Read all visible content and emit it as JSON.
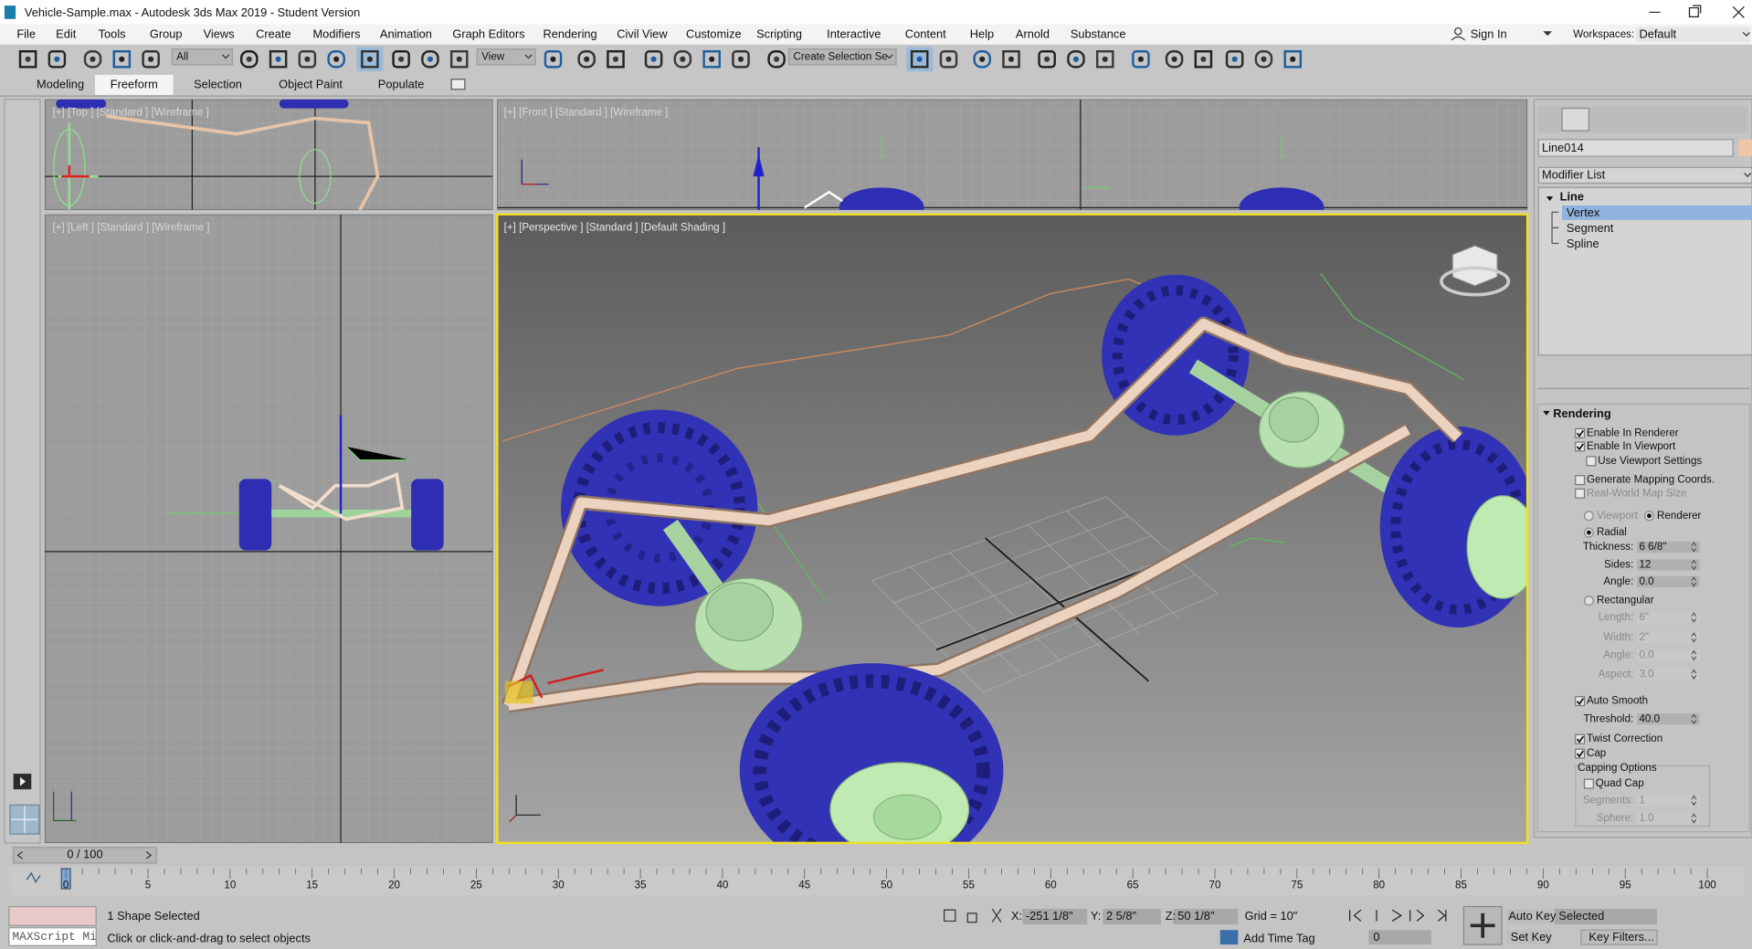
{
  "window": {
    "title": "Vehicle-Sample.max - Autodesk 3ds Max 2019 - Student Version"
  },
  "menu": [
    "File",
    "Edit",
    "Tools",
    "Group",
    "Views",
    "Create",
    "Modifiers",
    "Animation",
    "Graph Editors",
    "Rendering",
    "Civil View",
    "Customize",
    "Scripting",
    "Interactive",
    "Content",
    "Help",
    "Arnold",
    "Substance"
  ],
  "account": {
    "sign_in": "Sign In",
    "workspaces_label": "Workspaces:",
    "workspace": "Default"
  },
  "toolbar": {
    "filter": "All",
    "coord": "View",
    "selection_set": "Create Selection Se"
  },
  "ribbon_tabs": [
    "Modeling",
    "Freeform",
    "Selection",
    "Object Paint",
    "Populate"
  ],
  "active_tab": 1,
  "viewports": [
    {
      "label": "[+] [Top ] [Standard ] [Wireframe ]"
    },
    {
      "label": "[+] [Front ] [Standard ] [Wireframe ]"
    },
    {
      "label": "[+] [Left ] [Standard ] [Wireframe ]"
    },
    {
      "label": "[+] [Perspective ] [Standard ] [Default Shading ]"
    }
  ],
  "command_panel": {
    "object_name": "Line014",
    "modifier_list": "Modifier List",
    "stack": [
      "Line",
      "Vertex",
      "Segment",
      "Spline"
    ],
    "selected_stack": 1,
    "rollout": "Rendering",
    "rows": [
      {
        "kind": "check",
        "label": "Enable In Renderer",
        "checked": true
      },
      {
        "kind": "check",
        "label": "Enable In Viewport",
        "checked": true
      },
      {
        "kind": "check",
        "label": "Use Viewport Settings",
        "checked": false
      },
      {
        "kind": "check",
        "label": "Generate Mapping Coords.",
        "checked": false
      },
      {
        "kind": "check",
        "label": "Real-World Map Size",
        "checked": false,
        "disabled": true
      },
      {
        "kind": "radio",
        "label": "Viewport",
        "checked": false,
        "disabled": true
      },
      {
        "kind": "radio",
        "label": "Renderer",
        "checked": true
      },
      {
        "kind": "radio",
        "label": "Radial",
        "checked": true
      },
      {
        "kind": "spinner",
        "label": "Thickness:",
        "value": "6 6/8\""
      },
      {
        "kind": "spinner",
        "label": "Sides:",
        "value": "12"
      },
      {
        "kind": "spinner",
        "label": "Angle:",
        "value": "0.0"
      },
      {
        "kind": "radio",
        "label": "Rectangular",
        "checked": false
      },
      {
        "kind": "spinner",
        "label": "Length:",
        "value": "6\"",
        "disabled": true
      },
      {
        "kind": "spinner",
        "label": "Width:",
        "value": "2\"",
        "disabled": true
      },
      {
        "kind": "spinner",
        "label": "Angle:",
        "value": "0.0",
        "disabled": true
      },
      {
        "kind": "spinner",
        "label": "Aspect:",
        "value": "3.0",
        "disabled": true
      },
      {
        "kind": "check",
        "label": "Auto Smooth",
        "checked": true
      },
      {
        "kind": "spinner",
        "label": "Threshold:",
        "value": "40.0"
      },
      {
        "kind": "check",
        "label": "Twist Correction",
        "checked": true
      },
      {
        "kind": "check",
        "label": "Cap",
        "checked": true
      },
      {
        "kind": "label",
        "label": "Capping Options"
      },
      {
        "kind": "check",
        "label": "Quad Cap",
        "checked": false
      },
      {
        "kind": "spinner",
        "label": "Segments:",
        "value": "1",
        "disabled": true
      },
      {
        "kind": "spinner",
        "label": "Sphere:",
        "value": "1.0",
        "disabled": true
      }
    ]
  },
  "timeline": {
    "frame": "0 / 100",
    "ticks": [
      0,
      5,
      10,
      15,
      20,
      25,
      30,
      35,
      40,
      45,
      50,
      55,
      60,
      65,
      70,
      75,
      80,
      85,
      90,
      95,
      100
    ]
  },
  "status": {
    "maxscript": "MAXScript Mi",
    "selection": "1 Shape Selected",
    "prompt": "Click or click-and-drag to select objects",
    "x_label": "X:",
    "x": "-251 1/8\"",
    "y_label": "Y:",
    "y": "2 5/8\"",
    "z_label": "Z:",
    "z": "50 1/8\"",
    "grid": "Grid = 10\"",
    "time_tag": "Add Time Tag",
    "auto_key": "Auto Key",
    "key_mode": "Selected",
    "set_key": "Set Key",
    "key_filters": "Key Filters...",
    "frame": "0"
  }
}
